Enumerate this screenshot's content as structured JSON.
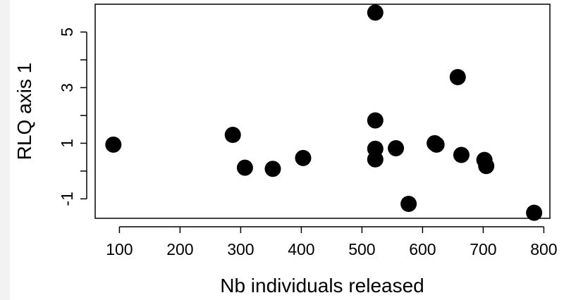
{
  "chart_data": {
    "type": "scatter",
    "title": "",
    "xlabel": "Nb individuals released",
    "ylabel": "RLQ axis 1",
    "xlim": [
      60,
      810
    ],
    "ylim": [
      -1.7,
      6.0
    ],
    "x_ticks": [
      100,
      200,
      300,
      400,
      500,
      600,
      700,
      800
    ],
    "x_tick_labels": [
      "100",
      "200",
      "300",
      "400",
      "500",
      "600",
      "700",
      "800"
    ],
    "y_ticks": [
      -1,
      0,
      1,
      2,
      3,
      4,
      5
    ],
    "y_tick_labels": [
      "-1",
      "",
      "1",
      "",
      "3",
      "",
      "5"
    ],
    "grid": false,
    "marker_color": "#000000",
    "points": [
      {
        "x": 90,
        "y": 0.95
      },
      {
        "x": 287,
        "y": 1.3
      },
      {
        "x": 307,
        "y": 0.12
      },
      {
        "x": 353,
        "y": 0.08
      },
      {
        "x": 403,
        "y": 0.47
      },
      {
        "x": 522,
        "y": 5.7
      },
      {
        "x": 522,
        "y": 1.82
      },
      {
        "x": 522,
        "y": 0.8
      },
      {
        "x": 522,
        "y": 0.42
      },
      {
        "x": 556,
        "y": 0.82
      },
      {
        "x": 577,
        "y": -1.18
      },
      {
        "x": 620,
        "y": 1.0
      },
      {
        "x": 623,
        "y": 0.95
      },
      {
        "x": 658,
        "y": 3.38
      },
      {
        "x": 664,
        "y": 0.58
      },
      {
        "x": 702,
        "y": 0.4
      },
      {
        "x": 705,
        "y": 0.18
      },
      {
        "x": 784,
        "y": -1.5
      }
    ]
  }
}
